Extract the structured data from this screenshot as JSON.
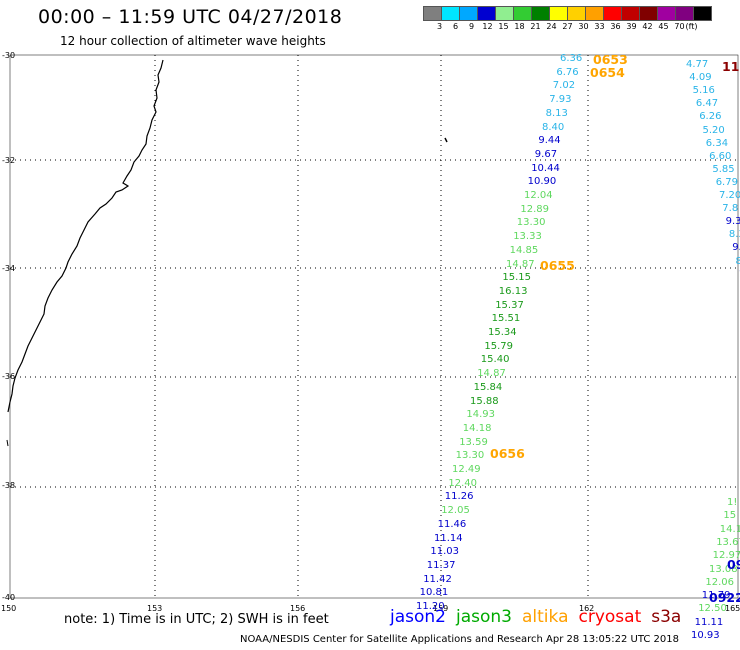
{
  "header": {
    "title": "00:00 – 11:59 UTC 04/27/2018",
    "subtitle": "12 hour collection of altimeter wave heights"
  },
  "legend": {
    "scale_labels": [
      "3",
      "6",
      "9",
      "12",
      "15",
      "18",
      "21",
      "24",
      "27",
      "30",
      "33",
      "36",
      "39",
      "42",
      "45",
      "70",
      "(ft)"
    ],
    "colors": [
      "#7f7f7f",
      "#00e5ff",
      "#00a8ff",
      "#0000d0",
      "#90ee90",
      "#33cc33",
      "#008000",
      "#ffff00",
      "#ffd000",
      "#ffa000",
      "#ff0000",
      "#c00000",
      "#800000",
      "#a000a0",
      "#800080",
      "#000000"
    ]
  },
  "map": {
    "lat_labels": [
      "-30",
      "-32",
      "-34",
      "-36",
      "-38",
      "-40"
    ],
    "lon_labels": [
      "150",
      "153",
      "156",
      "159",
      "162",
      "165"
    ],
    "tracks": [
      {
        "label": "sat-track-1",
        "points": [
          {
            "v": "6.36",
            "c": "#2ab4e8"
          },
          {
            "v": "6.76",
            "c": "#2ab4e8"
          },
          {
            "v": "7.02",
            "c": "#2ab4e8"
          },
          {
            "v": "7.93",
            "c": "#2ab4e8"
          },
          {
            "v": "8.13",
            "c": "#2ab4e8"
          },
          {
            "v": "8.40",
            "c": "#2ab4e8"
          },
          {
            "v": "9.44",
            "c": "#0000cc"
          },
          {
            "v": "9.67",
            "c": "#0000cc"
          },
          {
            "v": "10.44",
            "c": "#0000cc"
          },
          {
            "v": "10.90",
            "c": "#0000cc"
          },
          {
            "v": "12.04",
            "c": "#5fd85f"
          },
          {
            "v": "12.89",
            "c": "#5fd85f"
          },
          {
            "v": "13.30",
            "c": "#5fd85f"
          },
          {
            "v": "13.33",
            "c": "#5fd85f"
          },
          {
            "v": "14.85",
            "c": "#5fd85f"
          },
          {
            "v": "14.87",
            "c": "#5fd85f"
          },
          {
            "v": "15.15",
            "c": "#1a9a1a"
          },
          {
            "v": "16.13",
            "c": "#1a9a1a"
          },
          {
            "v": "15.37",
            "c": "#1a9a1a"
          },
          {
            "v": "15.51",
            "c": "#1a9a1a"
          },
          {
            "v": "15.34",
            "c": "#1a9a1a"
          },
          {
            "v": "15.79",
            "c": "#1a9a1a"
          },
          {
            "v": "15.40",
            "c": "#1a9a1a"
          },
          {
            "v": "14.87",
            "c": "#5fd85f"
          },
          {
            "v": "15.84",
            "c": "#1a9a1a"
          },
          {
            "v": "15.88",
            "c": "#1a9a1a"
          },
          {
            "v": "14.93",
            "c": "#5fd85f"
          },
          {
            "v": "14.18",
            "c": "#5fd85f"
          },
          {
            "v": "13.59",
            "c": "#5fd85f"
          },
          {
            "v": "13.30",
            "c": "#5fd85f"
          },
          {
            "v": "12.49",
            "c": "#5fd85f"
          },
          {
            "v": "12.40",
            "c": "#5fd85f"
          },
          {
            "v": "11.26",
            "c": "#0000cc"
          },
          {
            "v": "12.05",
            "c": "#5fd85f"
          },
          {
            "v": "11.46",
            "c": "#0000cc"
          },
          {
            "v": "11.14",
            "c": "#0000cc"
          },
          {
            "v": "11.03",
            "c": "#0000cc"
          },
          {
            "v": "11.37",
            "c": "#0000cc"
          },
          {
            "v": "11.42",
            "c": "#0000cc"
          },
          {
            "v": "10.81",
            "c": "#0000cc"
          },
          {
            "v": "11.20",
            "c": "#0000cc"
          }
        ]
      },
      {
        "label": "sat-track-2-top",
        "points": [
          {
            "v": "4.77",
            "c": "#2ab4e8"
          },
          {
            "v": "4.09",
            "c": "#2ab4e8"
          },
          {
            "v": "5.16",
            "c": "#2ab4e8"
          },
          {
            "v": "6.47",
            "c": "#2ab4e8"
          },
          {
            "v": "6.26",
            "c": "#2ab4e8"
          },
          {
            "v": "5.20",
            "c": "#2ab4e8"
          },
          {
            "v": "6.34",
            "c": "#2ab4e8"
          },
          {
            "v": "6.60",
            "c": "#2ab4e8"
          },
          {
            "v": "5.85",
            "c": "#2ab4e8"
          },
          {
            "v": "6.79",
            "c": "#2ab4e8"
          },
          {
            "v": "7.20",
            "c": "#2ab4e8"
          },
          {
            "v": "7.8",
            "c": "#2ab4e8"
          },
          {
            "v": "9.3",
            "c": "#0000cc"
          },
          {
            "v": "8.3",
            "c": "#2ab4e8"
          },
          {
            "v": "9.",
            "c": "#0000cc"
          },
          {
            "v": "8",
            "c": "#2ab4e8"
          },
          {
            "v": "1(",
            "c": "#0000cc"
          }
        ]
      },
      {
        "label": "sat-track-2-bottom",
        "points": [
          {
            "v": "1!",
            "c": "#5fd85f"
          },
          {
            "v": "15",
            "c": "#5fd85f"
          },
          {
            "v": "14.1",
            "c": "#5fd85f"
          },
          {
            "v": "13.67",
            "c": "#5fd85f"
          },
          {
            "v": "12.97",
            "c": "#5fd85f"
          },
          {
            "v": "13.08",
            "c": "#5fd85f"
          },
          {
            "v": "12.06",
            "c": "#5fd85f"
          },
          {
            "v": "11.79",
            "c": "#0000cc"
          },
          {
            "v": "12.50",
            "c": "#5fd85f"
          },
          {
            "v": "11.11",
            "c": "#0000cc"
          },
          {
            "v": "10.93",
            "c": "#0000cc"
          }
        ]
      }
    ],
    "time_labels": [
      {
        "text": "0653",
        "c": "#ffa500"
      },
      {
        "text": "0654",
        "c": "#ffa500"
      },
      {
        "text": "0655",
        "c": "#ffa500"
      },
      {
        "text": "0656",
        "c": "#ffa500"
      },
      {
        "text": "11",
        "c": "#8b0000"
      },
      {
        "text": "09",
        "c": "#0000cc"
      },
      {
        "text": "0922",
        "c": "#0000cc"
      }
    ]
  },
  "notes": {
    "note": "note: 1) Time is in UTC; 2) SWH is in feet",
    "satellites": [
      {
        "name": "jason2",
        "color": "#0000ff"
      },
      {
        "name": "jason3",
        "color": "#00aa00"
      },
      {
        "name": "altika",
        "color": "#ffa000"
      },
      {
        "name": "cryosat",
        "color": "#ff0000"
      },
      {
        "name": "s3a",
        "color": "#8b0000"
      }
    ],
    "footer": "NOAA/NESDIS Center for Satellite Applications and Research    Apr 28 13:05:22 UTC 2018"
  }
}
